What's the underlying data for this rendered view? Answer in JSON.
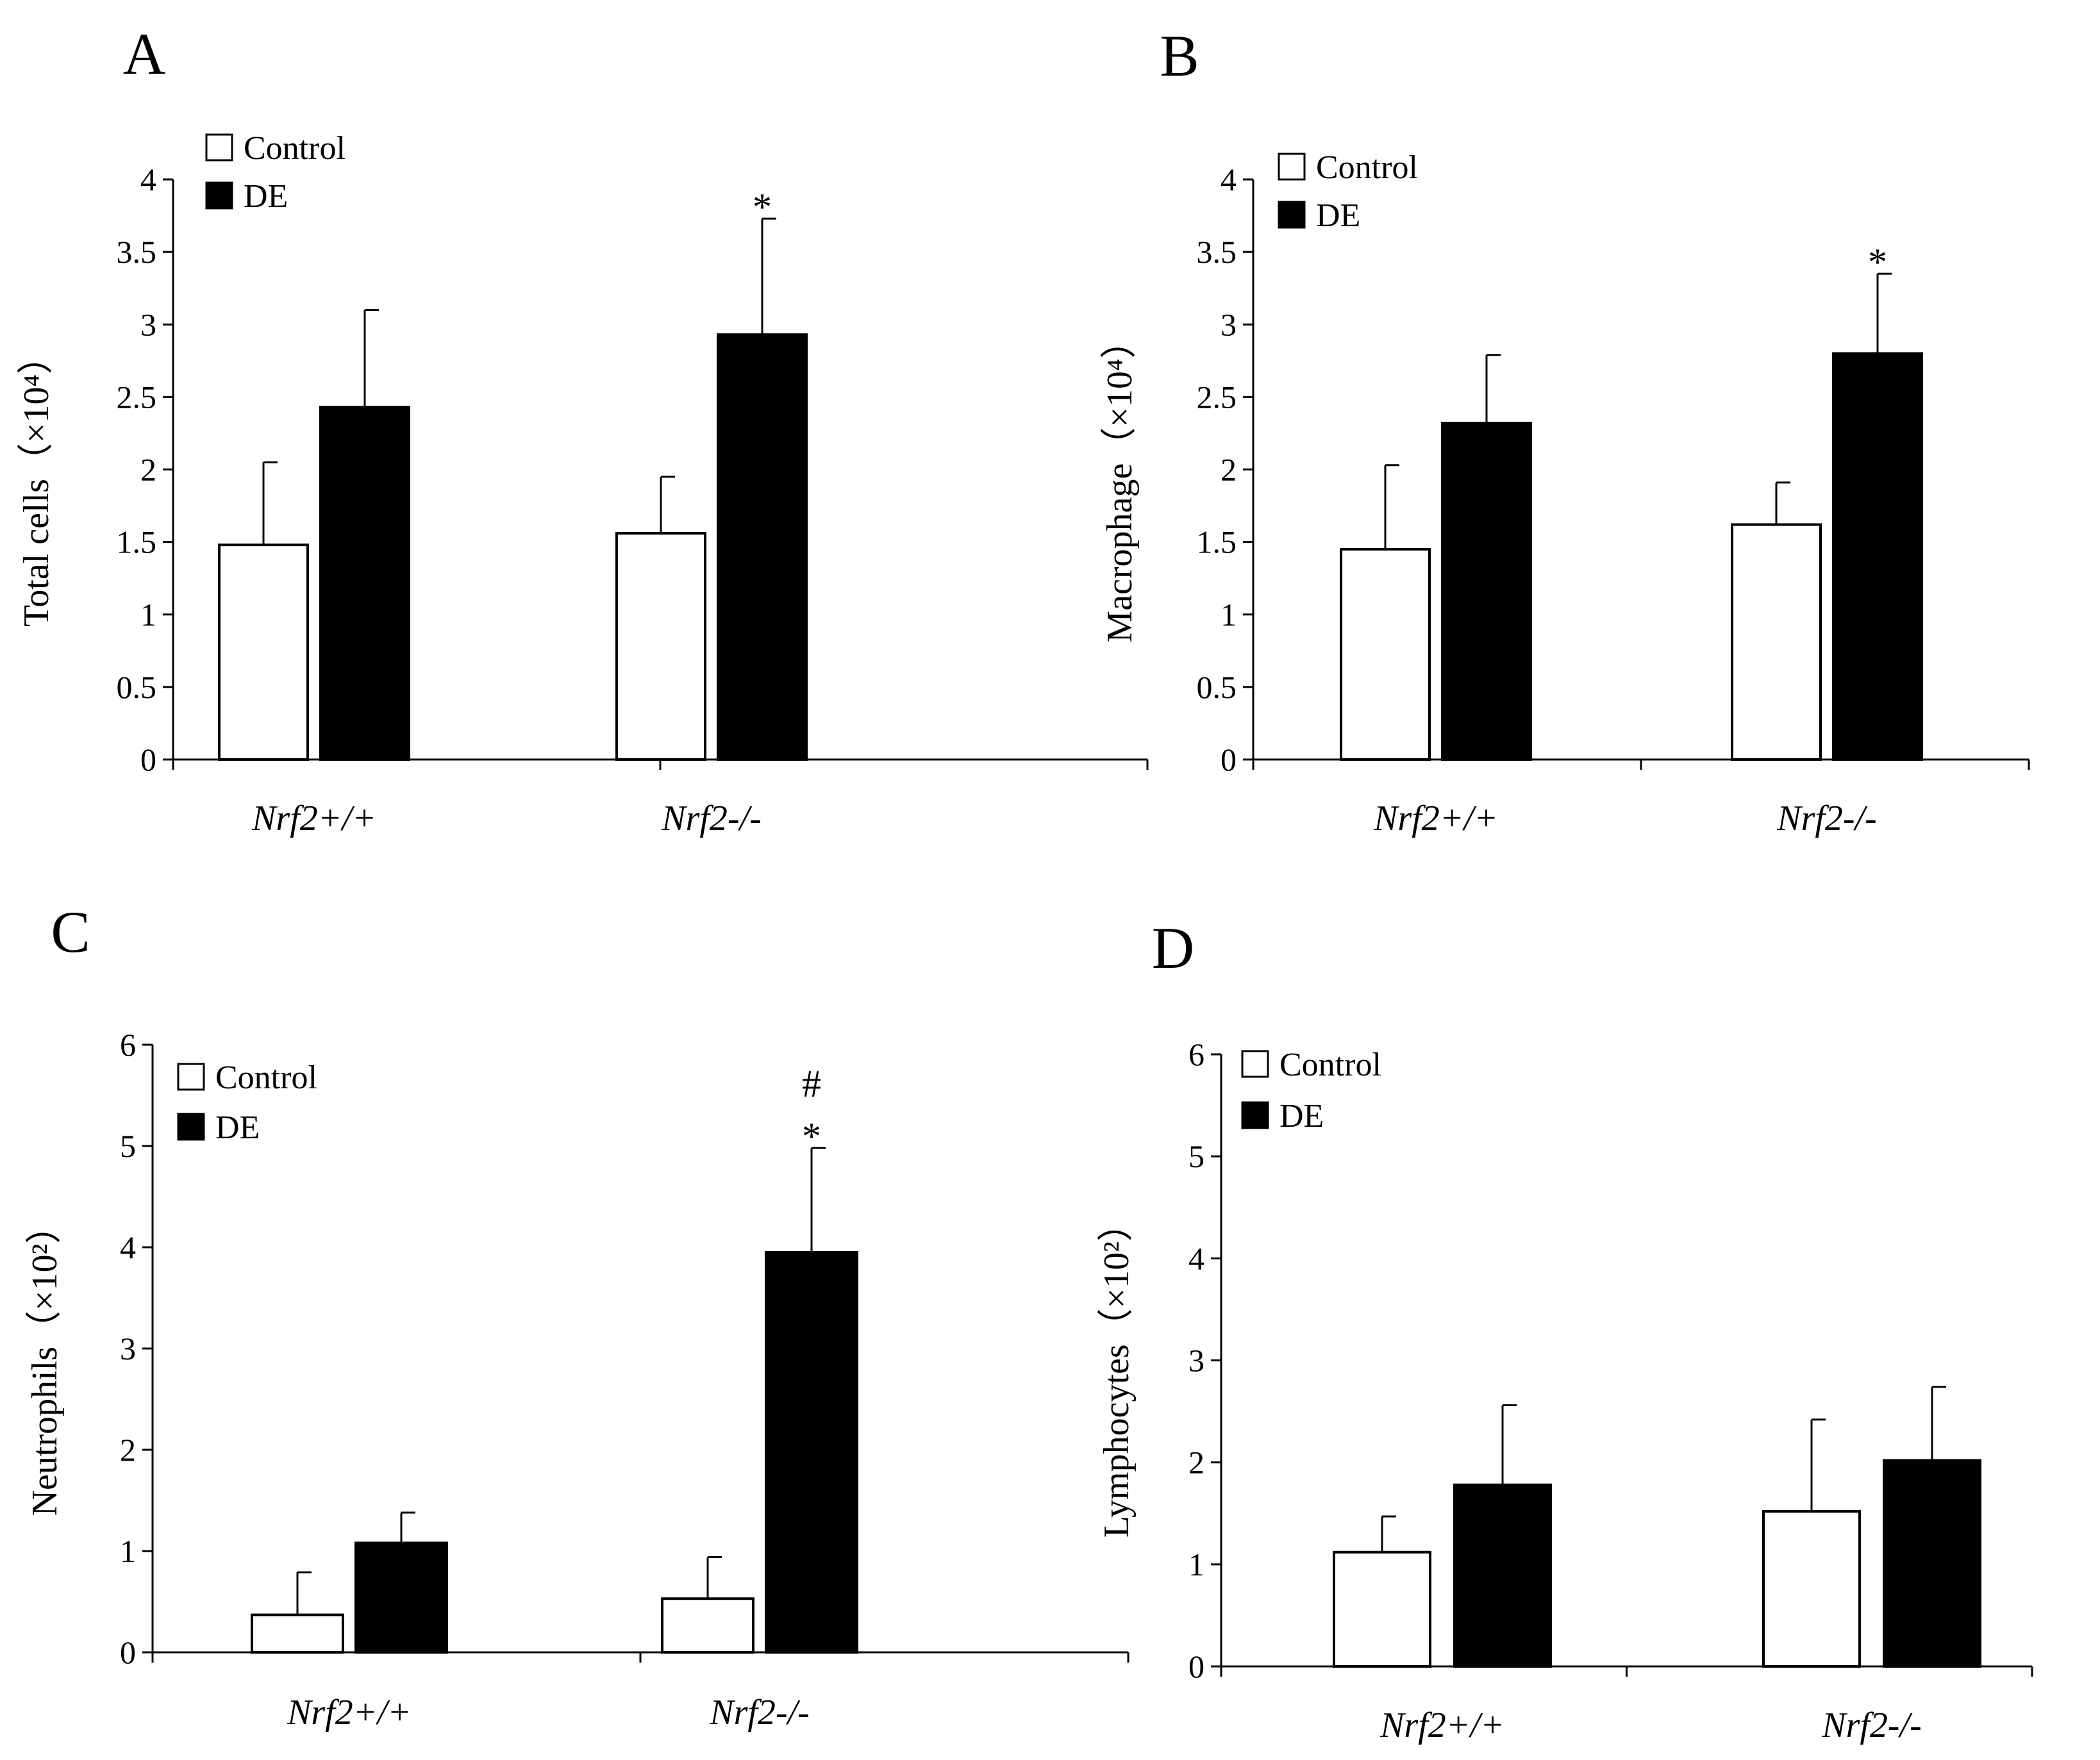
{
  "colors": {
    "control": "#ffffff",
    "de": "#000000",
    "axis": "#000000"
  },
  "chart_data": [
    {
      "type": "bar",
      "panel": "A",
      "ylabel": "Total cells",
      "ylabel_unit": "（×10⁴）",
      "categories": [
        "Nrf2+/+",
        "Nrf2-/-"
      ],
      "ylim": [
        0,
        4
      ],
      "yticks": [
        "0",
        "0.5",
        "1",
        "1.5",
        "2",
        "2.5",
        "3",
        "3.5",
        "4"
      ],
      "series": [
        {
          "name": "Control",
          "values": [
            1.48,
            1.56
          ],
          "errors": [
            0.57,
            0.39
          ]
        },
        {
          "name": "DE",
          "values": [
            2.43,
            2.93
          ],
          "errors": [
            0.67,
            0.8
          ]
        }
      ],
      "annotations": [
        {
          "category": 1,
          "series": 1,
          "lines": [
            "*"
          ]
        }
      ]
    },
    {
      "type": "bar",
      "panel": "B",
      "ylabel": "Macrophage",
      "ylabel_unit": "（×10⁴）",
      "categories": [
        "Nrf2+/+",
        "Nrf2-/-"
      ],
      "ylim": [
        0,
        4
      ],
      "yticks": [
        "0",
        "0.5",
        "1",
        "1.5",
        "2",
        "2.5",
        "3",
        "3.5",
        "4"
      ],
      "series": [
        {
          "name": "Control",
          "values": [
            1.45,
            1.62
          ],
          "errors": [
            0.58,
            0.29
          ]
        },
        {
          "name": "DE",
          "values": [
            2.32,
            2.8
          ],
          "errors": [
            0.47,
            0.55
          ]
        }
      ],
      "annotations": [
        {
          "category": 1,
          "series": 1,
          "lines": [
            "*"
          ]
        }
      ]
    },
    {
      "type": "bar",
      "panel": "C",
      "ylabel": "Neutrophils",
      "ylabel_unit": "（×10²）",
      "categories": [
        "Nrf2+/+",
        "Nrf2-/-"
      ],
      "ylim": [
        0,
        6
      ],
      "yticks": [
        "0",
        "1",
        "2",
        "3",
        "4",
        "5",
        "6"
      ],
      "series": [
        {
          "name": "Control",
          "values": [
            0.37,
            0.53
          ],
          "errors": [
            0.42,
            0.41
          ]
        },
        {
          "name": "DE",
          "values": [
            1.08,
            3.95
          ],
          "errors": [
            0.3,
            1.03
          ]
        }
      ],
      "annotations": [
        {
          "category": 1,
          "series": 1,
          "lines": [
            "#",
            "*"
          ]
        }
      ]
    },
    {
      "type": "bar",
      "panel": "D",
      "ylabel": "Lymphocytes",
      "ylabel_unit": "（×10²）",
      "categories": [
        "Nrf2+/+",
        "Nrf2-/-"
      ],
      "ylim": [
        0,
        6
      ],
      "yticks": [
        "0",
        "1",
        "2",
        "3",
        "4",
        "5",
        "6"
      ],
      "series": [
        {
          "name": "Control",
          "values": [
            1.12,
            1.52
          ],
          "errors": [
            0.35,
            0.9
          ]
        },
        {
          "name": "DE",
          "values": [
            1.78,
            2.02
          ],
          "errors": [
            0.78,
            0.72
          ]
        }
      ],
      "annotations": []
    }
  ]
}
